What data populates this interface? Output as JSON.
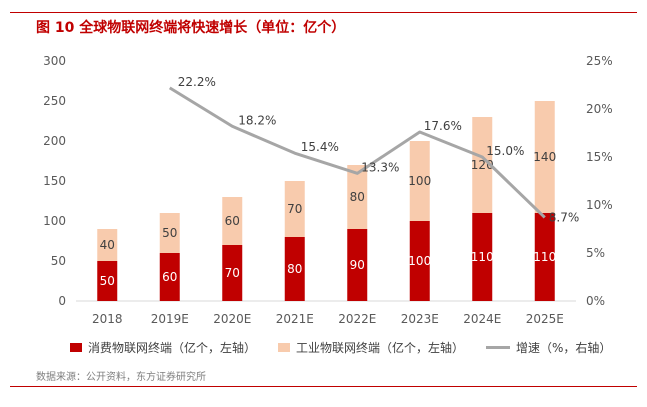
{
  "title": "图 10 全球物联网终端将快速增长（单位：亿个）",
  "source": "数据来源：公开资料，东方证券研究所",
  "colors": {
    "consumer": "#c00000",
    "industrial": "#f8cbad",
    "growth": "#a6a6a6",
    "accent": "#c00000"
  },
  "chart_data": {
    "type": "bar",
    "stacked": true,
    "categories": [
      "2018",
      "2019E",
      "2020E",
      "2021E",
      "2022E",
      "2023E",
      "2024E",
      "2025E"
    ],
    "series": [
      {
        "name": "消费物联网终端（亿个，左轴）",
        "axis": "left",
        "values": [
          50,
          60,
          70,
          80,
          90,
          100,
          110,
          110
        ]
      },
      {
        "name": "工业物联网终端（亿个，左轴）",
        "axis": "left",
        "values": [
          40,
          50,
          60,
          70,
          80,
          100,
          120,
          140
        ]
      },
      {
        "name": "增速（%，右轴）",
        "axis": "right",
        "type": "line",
        "values": [
          null,
          22.2,
          18.2,
          15.4,
          13.3,
          17.6,
          15.0,
          8.7
        ],
        "labels": [
          "",
          "22.2%",
          "18.2%",
          "15.4%",
          "13.3%",
          "17.6%",
          "15.0%",
          "8.7%"
        ]
      }
    ],
    "y_left": {
      "min": 0,
      "max": 300,
      "ticks": [
        "0",
        "50",
        "100",
        "150",
        "200",
        "250",
        "300"
      ]
    },
    "y_right": {
      "min": 0,
      "max": 25,
      "ticks": [
        "0%",
        "5%",
        "10%",
        "15%",
        "20%",
        "25%"
      ]
    },
    "legend_position": "bottom"
  }
}
